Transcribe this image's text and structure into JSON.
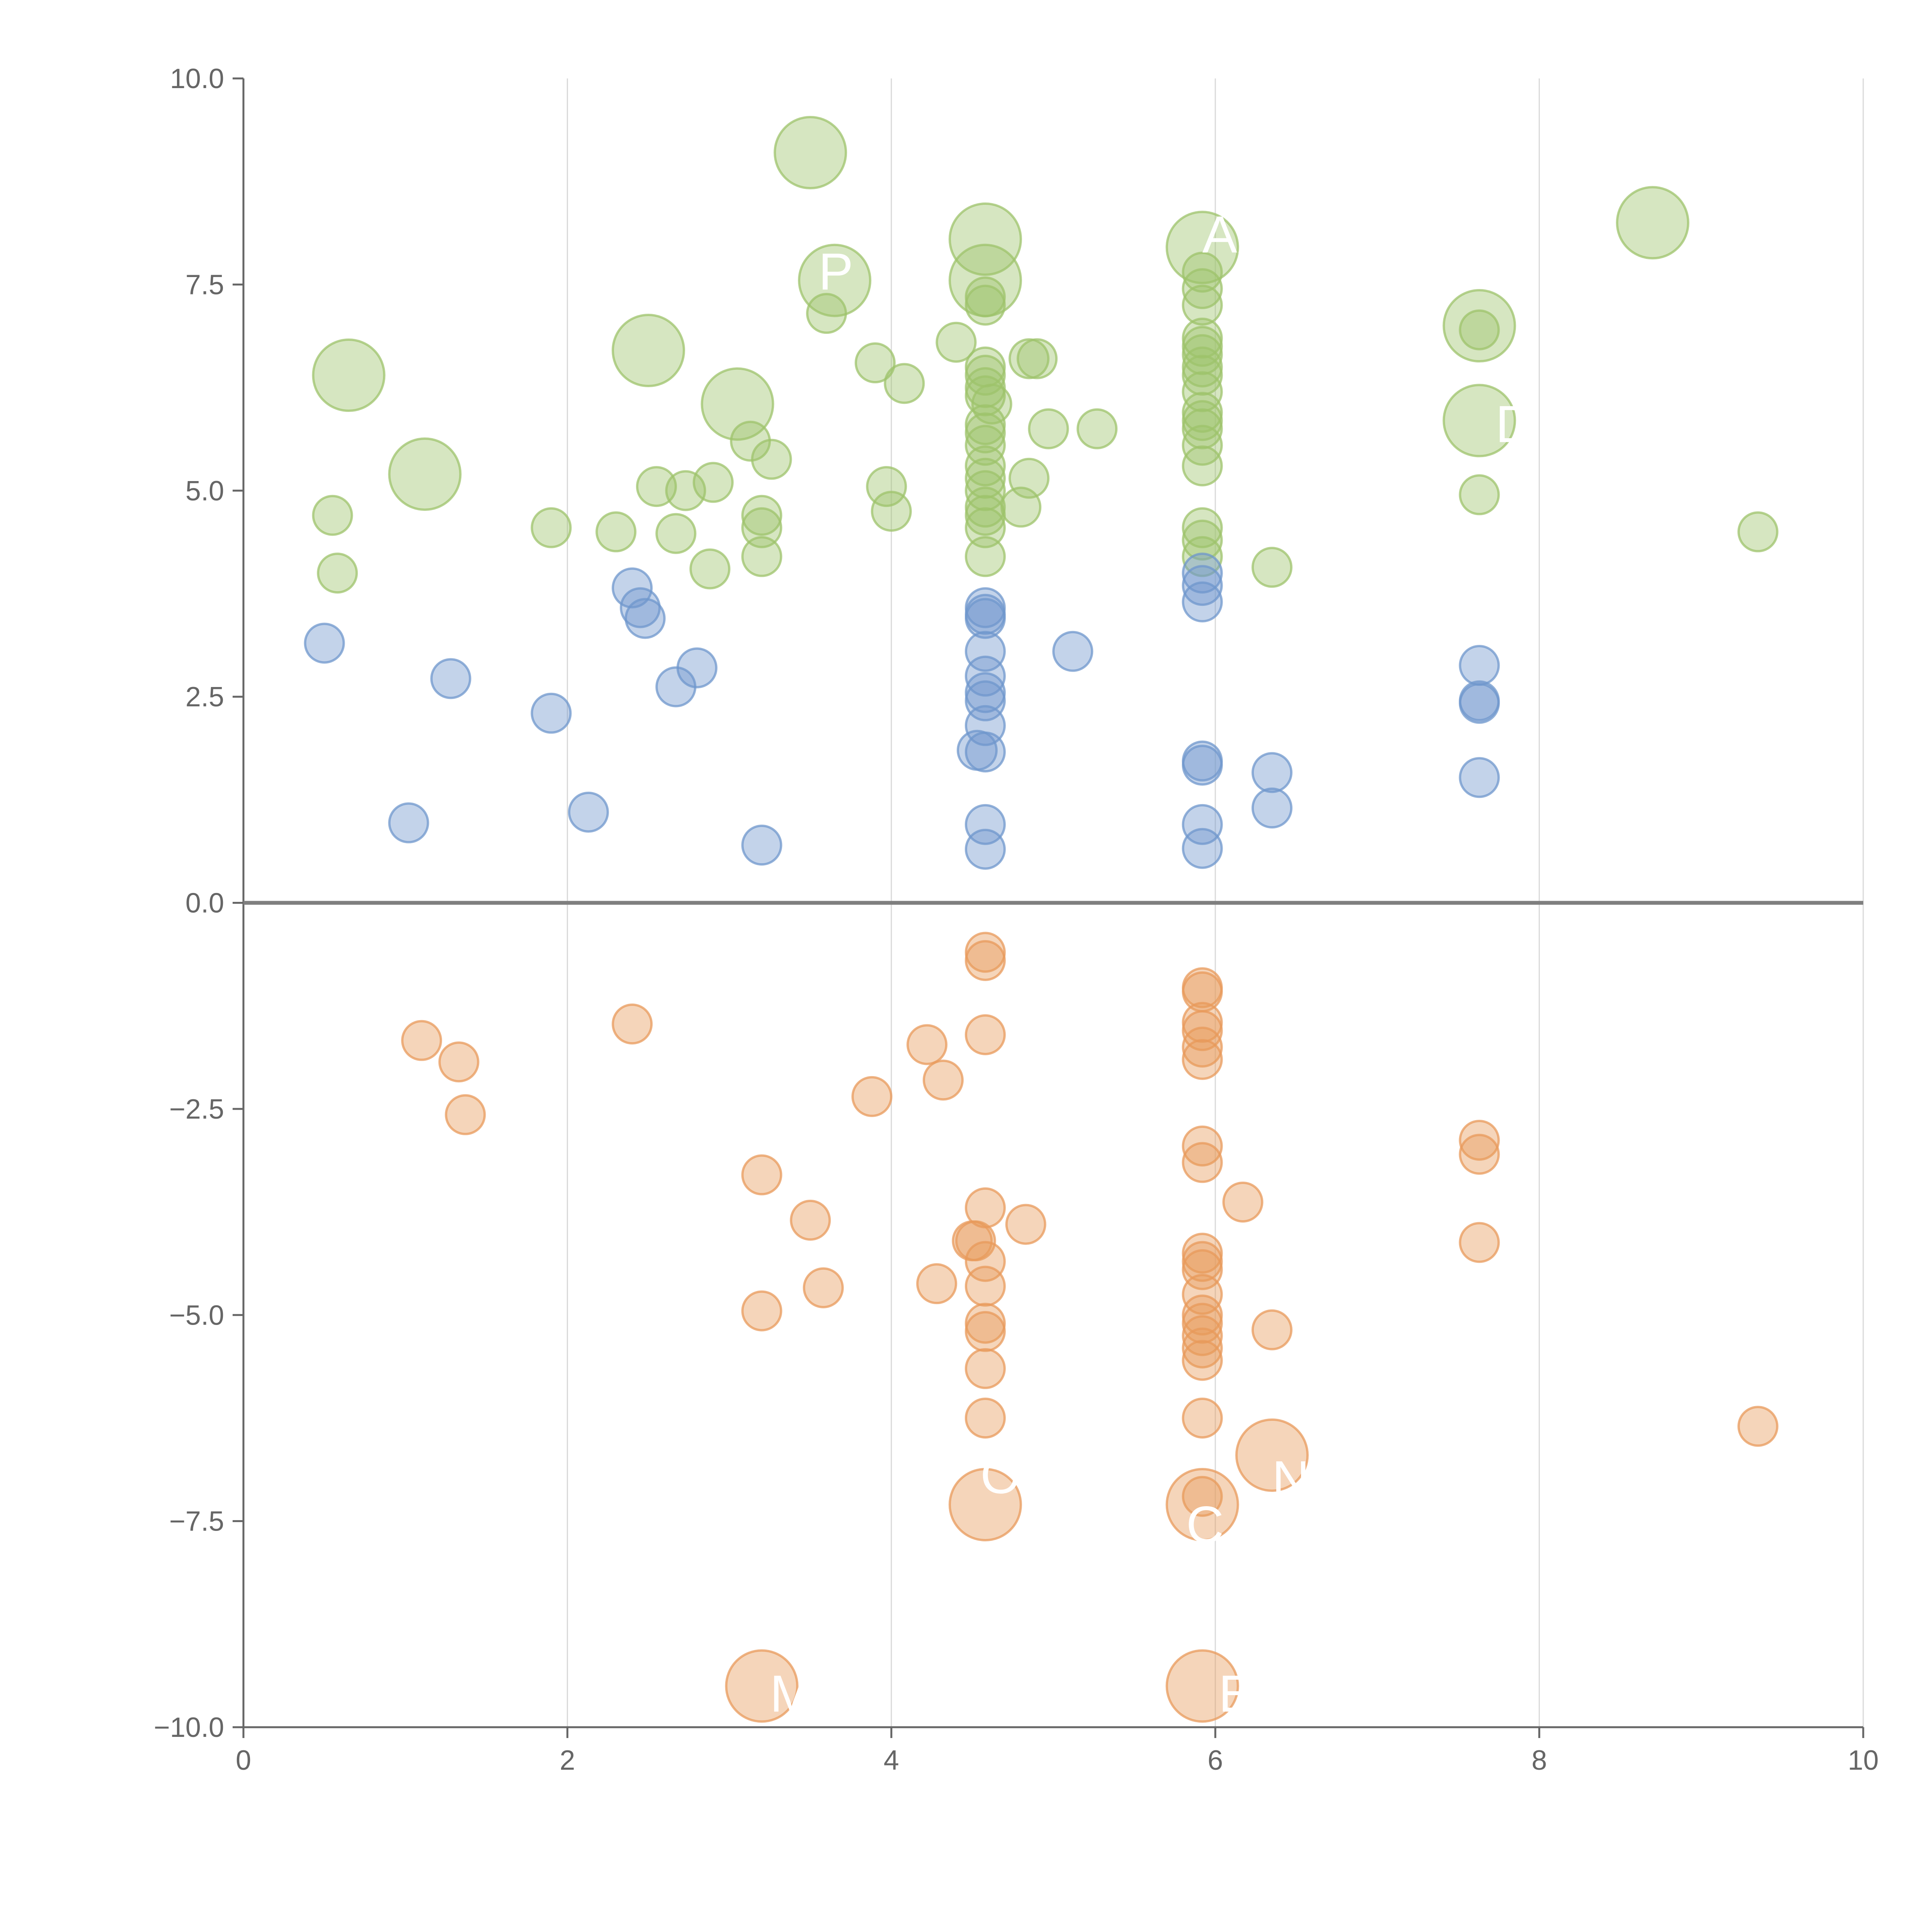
{
  "chart_data": {
    "type": "scatter",
    "title": "",
    "xlabel": "",
    "ylabel": "",
    "xlim": [
      0,
      10
    ],
    "ylim": [
      -10,
      10
    ],
    "x_ticks": [
      "0",
      "2",
      "4",
      "6",
      "8",
      "10"
    ],
    "y_ticks": [
      "10.0",
      "7.5",
      "5.0",
      "2.5",
      "0.0",
      "−2.5",
      "−5.0",
      "−7.5",
      "−10.0"
    ],
    "grid": "vertical",
    "zero_line": true,
    "colors": {
      "green": "#9dc36b",
      "blue": "#6f97cc",
      "orange": "#e89a5b",
      "axis": "#666666",
      "grid": "#d9d9d9"
    },
    "series": [
      {
        "color": "green",
        "points": [
          [
            0.55,
            4.7
          ],
          [
            0.58,
            4.0
          ],
          [
            0.65,
            6.4,
            "large"
          ],
          [
            1.12,
            5.2,
            "large"
          ],
          [
            1.9,
            4.55
          ],
          [
            2.3,
            4.5
          ],
          [
            2.5,
            6.7,
            "large"
          ],
          [
            2.55,
            5.05
          ],
          [
            2.67,
            4.48
          ],
          [
            2.73,
            5.0
          ],
          [
            2.88,
            4.05
          ],
          [
            2.9,
            5.1
          ],
          [
            3.05,
            6.05,
            "large"
          ],
          [
            3.13,
            5.6
          ],
          [
            3.2,
            4.7
          ],
          [
            3.2,
            4.55
          ],
          [
            3.2,
            4.2
          ],
          [
            3.26,
            5.38
          ],
          [
            3.5,
            9.1,
            "large"
          ],
          [
            3.6,
            7.15
          ],
          [
            3.65,
            7.55,
            "large"
          ],
          [
            3.9,
            6.55
          ],
          [
            3.97,
            5.05
          ],
          [
            4.0,
            4.75
          ],
          [
            4.08,
            6.3
          ],
          [
            4.4,
            6.8
          ],
          [
            4.58,
            8.05,
            "large"
          ],
          [
            4.58,
            7.55,
            "large"
          ],
          [
            4.58,
            7.35
          ],
          [
            4.58,
            7.25
          ],
          [
            4.58,
            6.5
          ],
          [
            4.58,
            6.4
          ],
          [
            4.58,
            6.25
          ],
          [
            4.58,
            6.15
          ],
          [
            4.58,
            5.8
          ],
          [
            4.58,
            5.7
          ],
          [
            4.58,
            5.55
          ],
          [
            4.58,
            5.3
          ],
          [
            4.58,
            5.15
          ],
          [
            4.58,
            5.0
          ],
          [
            4.58,
            4.8
          ],
          [
            4.58,
            4.7
          ],
          [
            4.58,
            4.55
          ],
          [
            4.58,
            4.2
          ],
          [
            4.62,
            6.05
          ],
          [
            4.8,
            4.8
          ],
          [
            4.85,
            5.15
          ],
          [
            4.85,
            6.6
          ],
          [
            4.9,
            6.6
          ],
          [
            4.97,
            5.75
          ],
          [
            5.27,
            5.75
          ],
          [
            5.92,
            7.95,
            "large"
          ],
          [
            5.92,
            7.65
          ],
          [
            5.92,
            7.45
          ],
          [
            5.92,
            7.25
          ],
          [
            5.92,
            6.85
          ],
          [
            5.92,
            6.75
          ],
          [
            5.92,
            6.65
          ],
          [
            5.92,
            6.5
          ],
          [
            5.92,
            6.4
          ],
          [
            5.92,
            6.2
          ],
          [
            5.92,
            5.95
          ],
          [
            5.92,
            5.85
          ],
          [
            5.92,
            5.75
          ],
          [
            5.92,
            5.55
          ],
          [
            5.92,
            5.3
          ],
          [
            5.92,
            4.55
          ],
          [
            5.92,
            4.4
          ],
          [
            5.92,
            4.2
          ],
          [
            6.35,
            4.07
          ],
          [
            7.63,
            7.0,
            "large"
          ],
          [
            7.63,
            6.95
          ],
          [
            7.63,
            5.85,
            "large"
          ],
          [
            7.63,
            4.95
          ],
          [
            8.7,
            8.25,
            "large"
          ],
          [
            9.35,
            4.5
          ]
        ]
      },
      {
        "color": "blue",
        "points": [
          [
            0.5,
            3.15
          ],
          [
            1.02,
            0.97
          ],
          [
            1.28,
            2.72
          ],
          [
            1.9,
            2.3
          ],
          [
            2.13,
            1.1
          ],
          [
            2.4,
            3.82
          ],
          [
            2.45,
            3.58
          ],
          [
            2.48,
            3.45
          ],
          [
            2.67,
            2.62
          ],
          [
            2.8,
            2.85
          ],
          [
            3.2,
            0.7
          ],
          [
            4.58,
            3.58
          ],
          [
            4.58,
            3.5
          ],
          [
            4.58,
            3.45
          ],
          [
            4.58,
            3.05
          ],
          [
            4.58,
            2.75
          ],
          [
            4.58,
            2.55
          ],
          [
            4.58,
            2.45
          ],
          [
            4.58,
            2.15
          ],
          [
            4.53,
            1.85
          ],
          [
            4.58,
            1.83
          ],
          [
            4.58,
            0.95
          ],
          [
            4.58,
            0.65
          ],
          [
            5.12,
            3.05
          ],
          [
            5.92,
            4.0
          ],
          [
            5.92,
            3.85
          ],
          [
            5.92,
            3.65
          ],
          [
            5.92,
            1.72
          ],
          [
            5.92,
            1.67
          ],
          [
            5.92,
            0.95
          ],
          [
            5.92,
            0.66
          ],
          [
            6.35,
            1.58
          ],
          [
            6.35,
            1.15
          ],
          [
            7.63,
            2.88
          ],
          [
            7.63,
            2.45
          ],
          [
            7.63,
            2.42
          ],
          [
            7.63,
            1.52
          ]
        ]
      },
      {
        "color": "orange",
        "points": [
          [
            1.1,
            -1.67
          ],
          [
            1.33,
            -1.93
          ],
          [
            1.37,
            -2.57
          ],
          [
            2.4,
            -1.47
          ],
          [
            3.2,
            -3.3
          ],
          [
            3.2,
            -4.95
          ],
          [
            3.5,
            -3.85
          ],
          [
            3.58,
            -4.67
          ],
          [
            3.88,
            -2.35
          ],
          [
            4.22,
            -1.72
          ],
          [
            4.28,
            -4.62
          ],
          [
            4.32,
            -2.15
          ],
          [
            4.5,
            -4.1
          ],
          [
            4.52,
            -4.1
          ],
          [
            4.58,
            -0.6
          ],
          [
            4.58,
            -0.7
          ],
          [
            4.58,
            -1.6
          ],
          [
            4.58,
            -3.7
          ],
          [
            4.58,
            -4.35
          ],
          [
            4.58,
            -4.65
          ],
          [
            4.58,
            -5.1
          ],
          [
            4.58,
            -5.2
          ],
          [
            4.58,
            -5.65
          ],
          [
            4.58,
            -6.25
          ],
          [
            4.58,
            -7.3,
            "large"
          ],
          [
            4.83,
            -3.9
          ],
          [
            5.92,
            -1.03
          ],
          [
            5.92,
            -1.08
          ],
          [
            5.92,
            -1.45
          ],
          [
            5.92,
            -1.55
          ],
          [
            5.92,
            -1.75
          ],
          [
            5.92,
            -1.9
          ],
          [
            5.92,
            -2.95
          ],
          [
            5.92,
            -3.15
          ],
          [
            5.92,
            -4.25
          ],
          [
            5.92,
            -4.35
          ],
          [
            5.92,
            -4.45
          ],
          [
            5.92,
            -4.75
          ],
          [
            5.92,
            -5.0
          ],
          [
            5.92,
            -5.1
          ],
          [
            5.92,
            -5.25
          ],
          [
            5.92,
            -5.4
          ],
          [
            5.92,
            -5.55
          ],
          [
            5.92,
            -6.25
          ],
          [
            5.92,
            -7.2
          ],
          [
            5.92,
            -7.3,
            "large"
          ],
          [
            5.92,
            -9.5,
            "large"
          ],
          [
            6.17,
            -3.63
          ],
          [
            6.35,
            -5.18
          ],
          [
            6.35,
            -6.7,
            "large"
          ],
          [
            7.63,
            -2.88
          ],
          [
            7.63,
            -3.05
          ],
          [
            7.63,
            -4.12
          ],
          [
            9.35,
            -6.35
          ],
          [
            3.2,
            -9.5,
            "large"
          ]
        ]
      }
    ],
    "annotations": [
      {
        "text": "AX",
        "x": 5.92,
        "y": 8.1
      },
      {
        "text": "P",
        "x": 3.55,
        "y": 7.65
      },
      {
        "text": "D",
        "x": 7.73,
        "y": 5.8
      },
      {
        "text": "N",
        "x": 6.35,
        "y": -7.0
      },
      {
        "text": "M",
        "x": 3.25,
        "y": -9.6
      },
      {
        "text": "E",
        "x": 6.02,
        "y": -9.6
      },
      {
        "text": "C",
        "x": 5.82,
        "y": -7.55
      },
      {
        "text": "O",
        "x": 4.55,
        "y": -6.95
      }
    ]
  }
}
